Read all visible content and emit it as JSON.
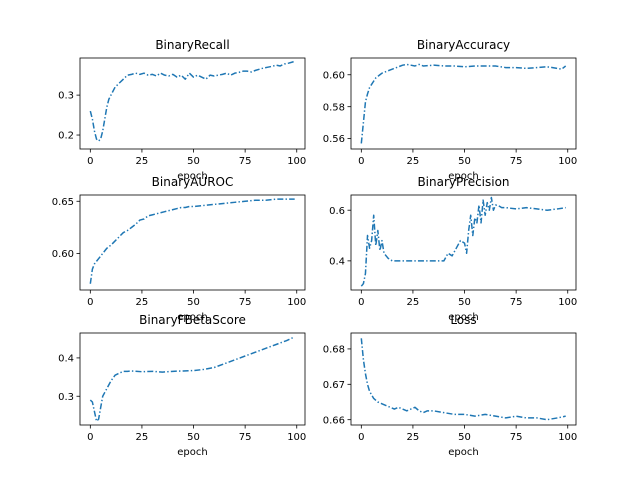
{
  "figure": {
    "background": "#ffffff",
    "line_color": "#1f77b4"
  },
  "chart_data": [
    {
      "type": "line",
      "title": "BinaryRecall",
      "xlabel": "epoch",
      "ylabel": "",
      "xlim": [
        -5,
        104
      ],
      "ylim": [
        0.165,
        0.393
      ],
      "xticks": [
        0,
        25,
        50,
        75,
        100
      ],
      "yticks": [
        0.2,
        0.3
      ],
      "ytick_labels": [
        "0.2",
        "0.3"
      ],
      "series": [
        {
          "x": [
            0,
            1,
            2,
            3,
            4,
            5,
            6,
            7,
            8,
            9,
            10,
            12,
            14,
            16,
            18,
            20,
            22,
            24,
            26,
            28,
            30,
            32,
            34,
            36,
            38,
            40,
            42,
            44,
            46,
            48,
            50,
            52,
            54,
            56,
            58,
            60,
            62,
            64,
            66,
            68,
            70,
            72,
            74,
            76,
            78,
            80,
            82,
            84,
            86,
            88,
            90,
            92,
            94,
            96,
            98,
            99
          ],
          "y": [
            0.26,
            0.24,
            0.21,
            0.19,
            0.185,
            0.19,
            0.21,
            0.24,
            0.27,
            0.29,
            0.3,
            0.32,
            0.33,
            0.34,
            0.35,
            0.352,
            0.355,
            0.352,
            0.355,
            0.35,
            0.352,
            0.348,
            0.355,
            0.35,
            0.348,
            0.352,
            0.345,
            0.35,
            0.34,
            0.355,
            0.345,
            0.35,
            0.345,
            0.34,
            0.35,
            0.348,
            0.35,
            0.352,
            0.355,
            0.35,
            0.355,
            0.357,
            0.36,
            0.36,
            0.358,
            0.362,
            0.365,
            0.368,
            0.37,
            0.372,
            0.375,
            0.373,
            0.378,
            0.38,
            0.383,
            0.385
          ]
        }
      ]
    },
    {
      "type": "line",
      "title": "BinaryAccuracy",
      "xlabel": "epoch",
      "ylabel": "",
      "xlim": [
        -5,
        104
      ],
      "ylim": [
        0.5535,
        0.6105
      ],
      "xticks": [
        0,
        25,
        50,
        75,
        100
      ],
      "yticks": [
        0.56,
        0.58,
        0.6
      ],
      "ytick_labels": [
        "0.56",
        "0.58",
        "0.60"
      ],
      "series": [
        {
          "x": [
            0,
            1,
            2,
            3,
            4,
            5,
            6,
            7,
            8,
            9,
            10,
            12,
            14,
            16,
            18,
            20,
            22,
            24,
            26,
            28,
            30,
            35,
            40,
            45,
            50,
            55,
            60,
            65,
            70,
            75,
            80,
            85,
            90,
            95,
            97,
            99
          ],
          "y": [
            0.557,
            0.57,
            0.583,
            0.588,
            0.592,
            0.594,
            0.596,
            0.598,
            0.599,
            0.6,
            0.601,
            0.602,
            0.603,
            0.604,
            0.605,
            0.606,
            0.6065,
            0.606,
            0.6055,
            0.6065,
            0.6055,
            0.606,
            0.6055,
            0.6055,
            0.605,
            0.6055,
            0.6055,
            0.6055,
            0.6045,
            0.6045,
            0.604,
            0.6045,
            0.605,
            0.604,
            0.6035,
            0.6055
          ]
        }
      ]
    },
    {
      "type": "line",
      "title": "BinaryAUROC",
      "xlabel": "epoch",
      "ylabel": "",
      "xlim": [
        -5,
        104
      ],
      "ylim": [
        0.565,
        0.656
      ],
      "xticks": [
        0,
        25,
        50,
        75,
        100
      ],
      "yticks": [
        0.6,
        0.65
      ],
      "ytick_labels": [
        "0.60",
        "0.65"
      ],
      "series": [
        {
          "x": [
            0,
            1,
            2,
            4,
            6,
            8,
            10,
            12,
            14,
            16,
            18,
            20,
            22,
            24,
            26,
            28,
            30,
            32,
            34,
            36,
            38,
            40,
            42,
            44,
            46,
            48,
            50,
            55,
            60,
            65,
            70,
            75,
            80,
            85,
            90,
            95,
            99
          ],
          "y": [
            0.571,
            0.585,
            0.59,
            0.595,
            0.6,
            0.605,
            0.608,
            0.612,
            0.616,
            0.62,
            0.622,
            0.625,
            0.628,
            0.632,
            0.633,
            0.636,
            0.637,
            0.638,
            0.639,
            0.64,
            0.641,
            0.642,
            0.643,
            0.644,
            0.644,
            0.645,
            0.645,
            0.646,
            0.647,
            0.648,
            0.649,
            0.65,
            0.651,
            0.651,
            0.652,
            0.652,
            0.652
          ]
        }
      ]
    },
    {
      "type": "line",
      "title": "BinaryPrecision",
      "xlabel": "epoch",
      "ylabel": "",
      "xlim": [
        -5,
        104
      ],
      "ylim": [
        0.285,
        0.66
      ],
      "xticks": [
        0,
        25,
        50,
        75,
        100
      ],
      "yticks": [
        0.4,
        0.6
      ],
      "ytick_labels": [
        "0.4",
        "0.6"
      ],
      "series": [
        {
          "x": [
            0,
            1,
            2,
            3,
            4,
            5,
            6,
            7,
            8,
            9,
            10,
            11,
            12,
            13,
            14,
            15,
            16,
            18,
            20,
            22,
            25,
            28,
            30,
            33,
            36,
            38,
            40,
            42,
            44,
            46,
            48,
            50,
            51,
            52,
            53,
            54,
            55,
            56,
            57,
            58,
            59,
            60,
            61,
            62,
            63,
            64,
            65,
            66,
            68,
            70,
            75,
            80,
            85,
            90,
            95,
            99
          ],
          "y": [
            0.3,
            0.31,
            0.35,
            0.5,
            0.45,
            0.48,
            0.58,
            0.46,
            0.52,
            0.44,
            0.48,
            0.43,
            0.42,
            0.41,
            0.405,
            0.4,
            0.4,
            0.4,
            0.4,
            0.4,
            0.4,
            0.4,
            0.4,
            0.4,
            0.4,
            0.4,
            0.4,
            0.43,
            0.42,
            0.45,
            0.48,
            0.47,
            0.43,
            0.52,
            0.58,
            0.5,
            0.57,
            0.55,
            0.62,
            0.55,
            0.64,
            0.58,
            0.63,
            0.6,
            0.65,
            0.6,
            0.62,
            0.62,
            0.61,
            0.61,
            0.605,
            0.61,
            0.605,
            0.6,
            0.605,
            0.61
          ]
        }
      ]
    },
    {
      "type": "line",
      "title": "BinaryFBetaScore",
      "xlabel": "epoch",
      "ylabel": "",
      "xlim": [
        -5,
        104
      ],
      "ylim": [
        0.225,
        0.465
      ],
      "xticks": [
        0,
        25,
        50,
        75,
        100
      ],
      "yticks": [
        0.3,
        0.4
      ],
      "ytick_labels": [
        "0.3",
        "0.4"
      ],
      "series": [
        {
          "x": [
            0,
            1,
            2,
            3,
            4,
            5,
            6,
            7,
            8,
            9,
            10,
            12,
            14,
            16,
            18,
            20,
            25,
            30,
            35,
            40,
            45,
            50,
            55,
            60,
            65,
            70,
            75,
            80,
            85,
            90,
            95,
            99
          ],
          "y": [
            0.29,
            0.285,
            0.26,
            0.235,
            0.24,
            0.27,
            0.3,
            0.31,
            0.32,
            0.33,
            0.34,
            0.355,
            0.36,
            0.365,
            0.365,
            0.366,
            0.364,
            0.365,
            0.363,
            0.365,
            0.366,
            0.367,
            0.37,
            0.375,
            0.385,
            0.395,
            0.405,
            0.415,
            0.425,
            0.435,
            0.445,
            0.455
          ]
        }
      ]
    },
    {
      "type": "line",
      "title": "Loss",
      "xlabel": "epoch",
      "ylabel": "",
      "xlim": [
        -5,
        104
      ],
      "ylim": [
        0.6585,
        0.6845
      ],
      "xticks": [
        0,
        25,
        50,
        75,
        100
      ],
      "yticks": [
        0.66,
        0.67,
        0.68
      ],
      "ytick_labels": [
        "0.66",
        "0.67",
        "0.68"
      ],
      "series": [
        {
          "x": [
            0,
            1,
            2,
            3,
            4,
            5,
            6,
            8,
            10,
            12,
            14,
            16,
            18,
            20,
            22,
            24,
            26,
            28,
            30,
            32,
            35,
            40,
            45,
            50,
            55,
            60,
            65,
            70,
            75,
            80,
            85,
            90,
            95,
            99
          ],
          "y": [
            0.683,
            0.677,
            0.673,
            0.67,
            0.668,
            0.667,
            0.666,
            0.665,
            0.6645,
            0.664,
            0.6635,
            0.663,
            0.6635,
            0.663,
            0.6625,
            0.663,
            0.6635,
            0.6625,
            0.662,
            0.6625,
            0.6625,
            0.662,
            0.6615,
            0.6615,
            0.661,
            0.6615,
            0.661,
            0.6605,
            0.661,
            0.6605,
            0.6605,
            0.66,
            0.6605,
            0.661
          ]
        }
      ]
    }
  ]
}
